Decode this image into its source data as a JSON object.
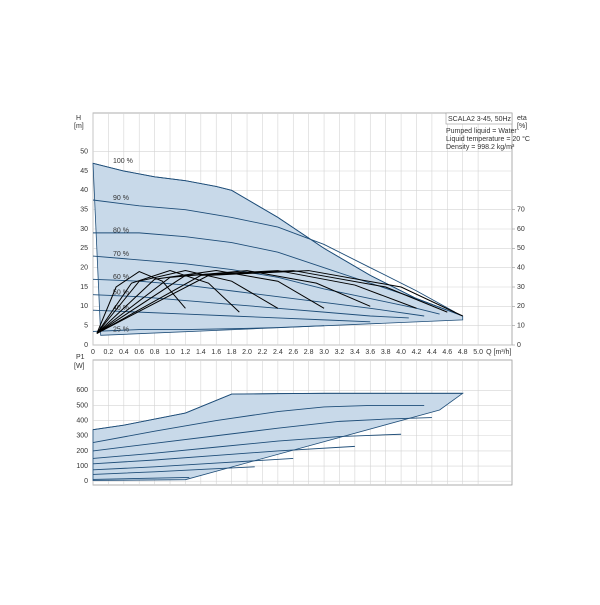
{
  "chart_data": [
    {
      "type": "line",
      "x_label": "Q [m³/h]",
      "y_label": "H",
      "y_unit": "[m]",
      "y2_label": "eta",
      "y2_unit": "[%]",
      "legend_box": {
        "title": "SCALA2 3-45, 50Hz",
        "lines": [
          "Pumped liquid = Water",
          "Liquid temperature = 20 °C",
          "Density = 998.2 kg/m³"
        ]
      },
      "xlim": [
        0,
        5.44
      ],
      "ylim": [
        0,
        60
      ],
      "y2lim": [
        0,
        120
      ],
      "grid": true,
      "xticks": [
        0,
        0.2,
        0.4,
        0.6,
        0.8,
        {
          "value": 1,
          "label": "1.0"
        },
        1.2,
        1.4,
        1.6,
        1.8,
        {
          "value": 2,
          "label": "2.0"
        },
        2.2,
        2.4,
        2.6,
        2.8,
        {
          "value": 3,
          "label": "3.0"
        },
        3.2,
        3.4,
        3.6,
        3.8,
        {
          "value": 4,
          "label": "4.0"
        },
        4.2,
        4.4,
        4.6,
        4.8,
        {
          "value": 5,
          "label": "5.0"
        }
      ],
      "yticks": [
        0,
        5,
        10,
        15,
        20,
        25,
        30,
        35,
        40,
        45,
        50
      ],
      "y2ticks": [
        0,
        10,
        20,
        30,
        40,
        50,
        60,
        70
      ],
      "area": {
        "color": "#c8d9e9",
        "x": [
          0,
          0.4,
          0.8,
          1.2,
          1.6,
          1.8,
          2.4,
          3.0,
          3.6,
          4.2,
          4.8,
          4.8,
          0.1
        ],
        "values": [
          47,
          45,
          43.5,
          42.5,
          41,
          40,
          33,
          25,
          18,
          12,
          7.5,
          6.5,
          2.5
        ]
      },
      "series": [
        {
          "name": "100 %",
          "color": "#1f4e79",
          "x": [
            0,
            0.4,
            0.8,
            1.2,
            1.6,
            1.8,
            2.4,
            3.0,
            3.6,
            4.2,
            4.8
          ],
          "values": [
            47,
            45,
            43.5,
            42.5,
            41,
            40,
            33,
            25,
            18,
            12,
            7.5
          ]
        },
        {
          "name": "90 %",
          "color": "#1f4e79",
          "x": [
            0,
            0.6,
            1.2,
            1.8,
            2.4,
            3.0,
            3.6,
            4.2,
            4.7
          ],
          "values": [
            37.5,
            36,
            35,
            33,
            30.5,
            26,
            20,
            14,
            8.5
          ]
        },
        {
          "name": "80 %",
          "color": "#1f4e79",
          "x": [
            0,
            0.6,
            1.2,
            1.8,
            2.4,
            3.0,
            3.6,
            4.2,
            4.6
          ],
          "values": [
            29,
            29,
            28,
            26.5,
            24,
            20,
            16,
            12,
            9
          ]
        },
        {
          "name": "70 %",
          "color": "#1f4e79",
          "x": [
            0,
            0.6,
            1.2,
            1.8,
            2.4,
            3.0,
            3.6,
            4.2,
            4.5
          ],
          "values": [
            23,
            22,
            21,
            19.5,
            17.5,
            14.5,
            12,
            9.5,
            8
          ]
        },
        {
          "name": "60 %",
          "color": "#1f4e79",
          "x": [
            0,
            0.6,
            1.2,
            1.8,
            2.4,
            3.0,
            3.6,
            4.3
          ],
          "values": [
            17,
            16.5,
            15.5,
            14,
            12.5,
            11,
            9.5,
            7.5
          ]
        },
        {
          "name": "50 %",
          "color": "#1f4e79",
          "x": [
            0,
            0.6,
            1.2,
            1.8,
            2.4,
            3.0,
            3.6,
            4.1
          ],
          "values": [
            13,
            12.5,
            11.5,
            10.5,
            9.5,
            8.5,
            7.5,
            7
          ]
        },
        {
          "name": "40 %",
          "color": "#1f4e79",
          "x": [
            0,
            0.6,
            1.2,
            1.8,
            2.4,
            3.0,
            3.6
          ],
          "values": [
            9,
            8.5,
            8,
            7.5,
            7,
            6.5,
            6
          ]
        },
        {
          "name": "25 %",
          "color": "#1f4e79",
          "x": [
            0,
            0.6,
            1.2,
            1.8,
            2.4,
            3.0
          ],
          "values": [
            3.5,
            4,
            4,
            4.2,
            4.5,
            5
          ]
        },
        {
          "axis": "y2",
          "color": "#000000",
          "x": [
            0.05,
            0.3,
            0.6,
            0.9,
            1.2
          ],
          "values": [
            6,
            30,
            38,
            33,
            19
          ]
        },
        {
          "axis": "y2",
          "color": "#000000",
          "x": [
            0.05,
            0.5,
            1.0,
            1.5,
            1.9
          ],
          "values": [
            6,
            32,
            38.5,
            32,
            17
          ]
        },
        {
          "axis": "y2",
          "color": "#000000",
          "x": [
            0.05,
            0.6,
            1.2,
            1.8,
            2.4
          ],
          "values": [
            6,
            33,
            38.5,
            33,
            19
          ]
        },
        {
          "axis": "y2",
          "color": "#000000",
          "x": [
            0.05,
            0.8,
            1.6,
            2.4,
            3.0
          ],
          "values": [
            6,
            34,
            38.5,
            33,
            19
          ]
        },
        {
          "axis": "y2",
          "color": "#000000",
          "x": [
            0.05,
            1.0,
            2.0,
            2.9,
            3.6
          ],
          "values": [
            6,
            35,
            38.5,
            32,
            20
          ]
        },
        {
          "axis": "y2",
          "color": "#000000",
          "x": [
            0.05,
            1.2,
            2.4,
            3.4,
            4.2
          ],
          "values": [
            6,
            36,
            38.5,
            31,
            19
          ]
        },
        {
          "axis": "y2",
          "color": "#000000",
          "x": [
            0.05,
            1.4,
            2.6,
            3.8,
            4.6
          ],
          "values": [
            6,
            36,
            38.5,
            30,
            17
          ]
        },
        {
          "axis": "y2",
          "color": "#000000",
          "x": [
            0.05,
            1.5,
            2.8,
            4.0,
            4.8
          ],
          "values": [
            6,
            36,
            38.5,
            30,
            15
          ]
        }
      ]
    },
    {
      "type": "line",
      "y_label": "P1",
      "y_unit": "[W]",
      "xlim": [
        0,
        5.44
      ],
      "ylim": [
        -25,
        800
      ],
      "grid": true,
      "xticks": [
        0,
        0.2,
        0.4,
        0.6,
        0.8,
        1,
        1.2,
        1.4,
        1.6,
        1.8,
        2,
        2.2,
        2.4,
        2.6,
        2.8,
        3,
        3.2,
        3.4,
        3.6,
        3.8,
        4,
        4.2,
        4.4,
        4.6,
        4.8,
        5
      ],
      "yticks": [
        0,
        100,
        200,
        300,
        400,
        500,
        600
      ],
      "area": {
        "color": "#c8d9e9",
        "x": [
          0,
          0.4,
          0.8,
          1.2,
          1.8,
          2.4,
          3.0,
          3.6,
          4.2,
          4.8,
          4.5,
          1.2,
          0
        ],
        "values": [
          340,
          370,
          410,
          450,
          575,
          578,
          580,
          580,
          580,
          580,
          470,
          10,
          5
        ]
      },
      "series": [
        {
          "color": "#1f4e79",
          "x": [
            0,
            0.4,
            0.8,
            1.2,
            1.8,
            2.4,
            3.0,
            3.6,
            4.2,
            4.8
          ],
          "values": [
            340,
            370,
            410,
            450,
            575,
            578,
            580,
            580,
            580,
            580
          ]
        },
        {
          "color": "#1f4e79",
          "x": [
            0,
            0.8,
            1.6,
            2.4,
            3.0,
            3.6,
            4.3
          ],
          "values": [
            255,
            330,
            400,
            460,
            490,
            500,
            500
          ]
        },
        {
          "color": "#1f4e79",
          "x": [
            0,
            0.8,
            1.6,
            2.4,
            3.2,
            3.8,
            4.4
          ],
          "values": [
            200,
            250,
            300,
            350,
            395,
            410,
            420
          ]
        },
        {
          "color": "#1f4e79",
          "x": [
            0,
            0.8,
            1.6,
            2.4,
            3.2,
            4.0
          ],
          "values": [
            150,
            185,
            225,
            265,
            295,
            310
          ]
        },
        {
          "color": "#1f4e79",
          "x": [
            0,
            0.8,
            1.6,
            2.4,
            3.4
          ],
          "values": [
            115,
            140,
            170,
            200,
            230
          ]
        },
        {
          "color": "#1f4e79",
          "x": [
            0,
            0.8,
            1.6,
            2.6
          ],
          "values": [
            75,
            95,
            120,
            150
          ]
        },
        {
          "color": "#1f4e79",
          "x": [
            0,
            0.8,
            1.5,
            2.1
          ],
          "values": [
            45,
            62,
            80,
            95
          ]
        },
        {
          "color": "#1f4e79",
          "x": [
            0,
            0.6,
            1.25
          ],
          "values": [
            12,
            18,
            25
          ]
        }
      ]
    }
  ]
}
